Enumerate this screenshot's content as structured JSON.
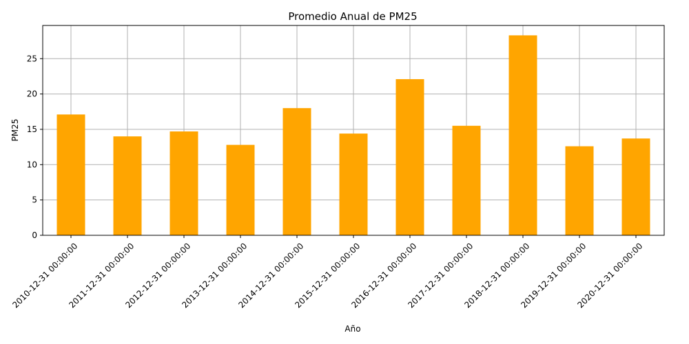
{
  "chart_data": {
    "type": "bar",
    "title": "Promedio Anual de PM25",
    "xlabel": "Año",
    "ylabel": "PM25",
    "categories": [
      "2010-12-31 00:00:00",
      "2011-12-31 00:00:00",
      "2012-12-31 00:00:00",
      "2013-12-31 00:00:00",
      "2014-12-31 00:00:00",
      "2015-12-31 00:00:00",
      "2016-12-31 00:00:00",
      "2017-12-31 00:00:00",
      "2018-12-31 00:00:00",
      "2019-12-31 00:00:00",
      "2020-12-31 00:00:00"
    ],
    "values": [
      17.1,
      14.0,
      14.7,
      12.8,
      18.0,
      14.4,
      22.1,
      15.5,
      28.3,
      12.6,
      13.7
    ],
    "ylim": [
      0,
      29.7
    ],
    "yticks": [
      0,
      5,
      10,
      15,
      20,
      25
    ],
    "grid": true,
    "bar_color": "#ffa500",
    "grid_color": "#b0b0b0"
  }
}
